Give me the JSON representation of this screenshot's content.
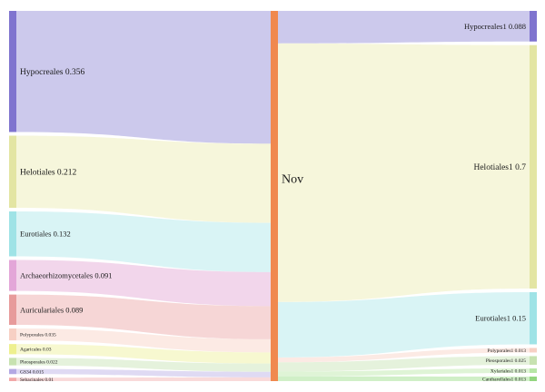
{
  "center": {
    "label": "Nov",
    "color": "#f0894f"
  },
  "left_nodes": [
    {
      "label": "Hypocreales",
      "value": "0.356",
      "color": "#7f74cf",
      "band": "#c3bfe9"
    },
    {
      "label": "Helotiales",
      "value": "0.212",
      "color": "#e3e5a3",
      "band": "#f5f5d5"
    },
    {
      "label": "Eurotiales",
      "value": "0.132",
      "color": "#9fe3e6",
      "band": "#d2f2f3"
    },
    {
      "label": "Archaeorhizomycetales",
      "value": "0.091",
      "color": "#e3a6d8",
      "band": "#f0cfe8"
    },
    {
      "label": "Auriculariales",
      "value": "0.089",
      "color": "#e79b9b",
      "band": "#f4cfcf"
    },
    {
      "label": "Polyporales",
      "value": "0.035",
      "color": "#f7d0c4",
      "band": "#fbe6df"
    },
    {
      "label": "Agaricales",
      "value": "0.03",
      "color": "#eef08f",
      "band": "#f6f7c8"
    },
    {
      "label": "Pleosporales",
      "value": "0.022",
      "color": "#c7e2b0",
      "band": "#e1f0d6"
    },
    {
      "label": "GS34",
      "value": "0.015",
      "color": "#b3a8e3",
      "band": "#d9d3f1"
    },
    {
      "label": "Sebacinales",
      "value": "0.01",
      "color": "#f1a8a8",
      "band": "#f8d3d3"
    }
  ],
  "right_nodes": [
    {
      "label": "Hypocreales1",
      "value": "0.088",
      "color": "#7f74cf",
      "band": "#c3bfe9"
    },
    {
      "label": "Helotiales1",
      "value": "0.7",
      "color": "#e3e5a3",
      "band": "#f5f5d5"
    },
    {
      "label": "Eurotiales1",
      "value": "0.15",
      "color": "#9fe3e6",
      "band": "#d2f2f3"
    },
    {
      "label": "Polyporales1",
      "value": "0.013",
      "color": "#f7d0c4",
      "band": "#fbe6df"
    },
    {
      "label": "Pleosporales1",
      "value": "0.025",
      "color": "#c7e2b0",
      "band": "#e1f0d6"
    },
    {
      "label": "Xylariales1",
      "value": "0.013",
      "color": "#b7e6a6",
      "band": "#d9f2cf"
    },
    {
      "label": "Cantharellales1",
      "value": "0.013",
      "color": "#93d57f",
      "band": "#c8ecbd"
    }
  ]
}
